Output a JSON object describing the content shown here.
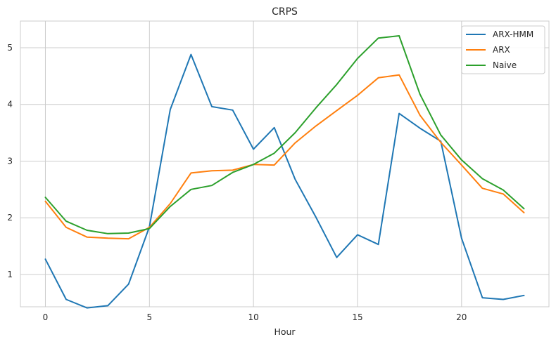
{
  "chart_data": {
    "type": "line",
    "title": "CRPS",
    "xlabel": "Hour",
    "ylabel": "",
    "xlim": [
      -1.2,
      24.2
    ],
    "ylim": [
      0.43,
      5.47
    ],
    "xticks": [
      0,
      5,
      10,
      15,
      20
    ],
    "yticks": [
      1,
      2,
      3,
      4,
      5
    ],
    "grid": true,
    "legend_position": "top-right",
    "x": [
      0,
      1,
      2,
      3,
      4,
      5,
      6,
      7,
      8,
      9,
      10,
      11,
      12,
      13,
      14,
      15,
      16,
      17,
      18,
      19,
      20,
      21,
      22,
      23
    ],
    "series": [
      {
        "name": "ARX-HMM",
        "color": "#1f77b4",
        "values": [
          1.27,
          0.56,
          0.41,
          0.45,
          0.83,
          1.84,
          3.91,
          4.88,
          3.96,
          3.9,
          3.21,
          3.59,
          2.68,
          2.01,
          1.3,
          1.7,
          1.53,
          3.84,
          3.58,
          3.35,
          1.64,
          0.59,
          0.56,
          0.63
        ]
      },
      {
        "name": "ARX",
        "color": "#ff7f0e",
        "values": [
          2.29,
          1.83,
          1.66,
          1.64,
          1.63,
          1.83,
          2.25,
          2.79,
          2.83,
          2.84,
          2.94,
          2.93,
          3.32,
          3.62,
          3.89,
          4.16,
          4.47,
          4.52,
          3.81,
          3.33,
          2.93,
          2.52,
          2.42,
          2.09
        ]
      },
      {
        "name": "Naive",
        "color": "#2ca02c",
        "values": [
          2.36,
          1.94,
          1.78,
          1.72,
          1.73,
          1.81,
          2.2,
          2.5,
          2.57,
          2.8,
          2.94,
          3.14,
          3.5,
          3.94,
          4.35,
          4.81,
          5.17,
          5.21,
          4.18,
          3.46,
          3.02,
          2.69,
          2.49,
          2.16
        ]
      }
    ]
  }
}
